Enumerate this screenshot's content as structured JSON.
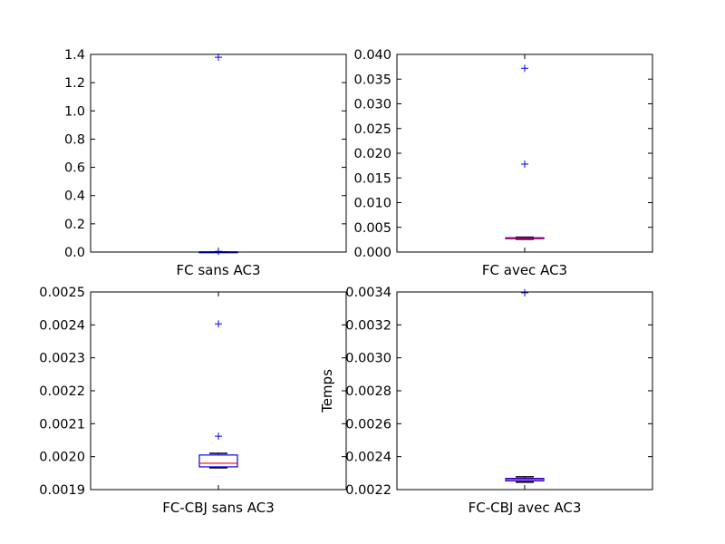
{
  "chart_data": [
    {
      "type": "boxplot",
      "xlabel": "FC sans AC3",
      "ylabel": "",
      "ylim": [
        0.0,
        1.4
      ],
      "yticks": [
        "0.0",
        "0.2",
        "0.4",
        "0.6",
        "0.8",
        "1.0",
        "1.2",
        "1.4"
      ],
      "box": {
        "whisker_low": 0.0006,
        "q1": 0.0008,
        "median": 0.0012,
        "q3": 0.0016,
        "whisker_high": 0.002
      },
      "outliers": [
        1.38,
        0.005
      ],
      "colors": {
        "box": "#0000ff",
        "median": "#ff0000",
        "flier": "#0000ff"
      }
    },
    {
      "type": "boxplot",
      "xlabel": "FC avec AC3",
      "ylabel": "",
      "ylim": [
        0.0,
        0.04
      ],
      "yticks": [
        "0.000",
        "0.005",
        "0.010",
        "0.015",
        "0.020",
        "0.025",
        "0.030",
        "0.035",
        "0.040"
      ],
      "box": {
        "whisker_low": 0.0026,
        "q1": 0.0027,
        "median": 0.0028,
        "q3": 0.0029,
        "whisker_high": 0.003
      },
      "outliers": [
        0.0372,
        0.0178
      ],
      "colors": {
        "box": "#0000ff",
        "median": "#ff0000",
        "flier": "#0000ff"
      }
    },
    {
      "type": "boxplot",
      "xlabel": "FC-CBJ sans AC3",
      "ylabel": "",
      "ylim": [
        0.0019,
        0.0025
      ],
      "yticks": [
        "0.0019",
        "0.0020",
        "0.0021",
        "0.0022",
        "0.0023",
        "0.0024",
        "0.0025"
      ],
      "box": {
        "whisker_low": 0.001966,
        "q1": 0.001969,
        "median": 0.00198,
        "q3": 0.002005,
        "whisker_high": 0.00201
      },
      "outliers": [
        0.002403,
        0.002062
      ],
      "colors": {
        "box": "#0000ff",
        "median": "#ff0000",
        "flier": "#0000ff"
      }
    },
    {
      "type": "boxplot",
      "xlabel": "FC-CBJ avec AC3",
      "ylabel": "Temps",
      "ylim": [
        0.0022,
        0.0034
      ],
      "yticks": [
        "0.0022",
        "0.0024",
        "0.0026",
        "0.0028",
        "0.0030",
        "0.0032",
        "0.0034"
      ],
      "box": {
        "whisker_low": 0.002245,
        "q1": 0.002253,
        "median": 0.002262,
        "q3": 0.002268,
        "whisker_high": 0.002278
      },
      "outliers": [
        0.003395
      ],
      "colors": {
        "box": "#0000ff",
        "median": "#ff0000",
        "flier": "#0000ff"
      }
    }
  ]
}
